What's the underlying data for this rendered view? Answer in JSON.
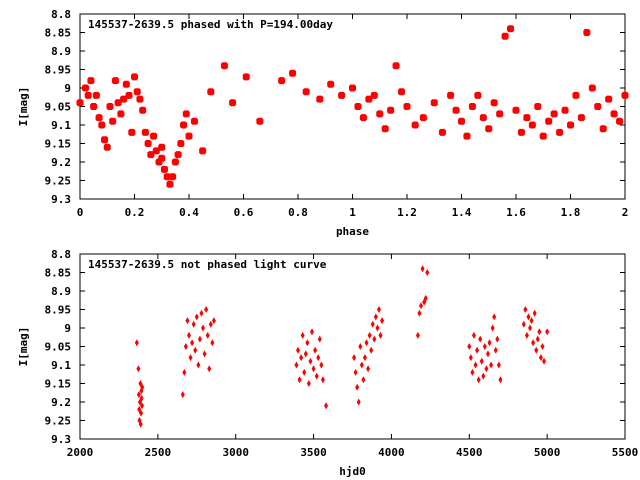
{
  "chart_data": [
    {
      "type": "scatter",
      "title": "145537-2639.5 phased with P=194.00day",
      "xlabel": "phase",
      "ylabel": "I[mag]",
      "xlim": [
        0,
        2
      ],
      "ylim": [
        9.3,
        8.8
      ],
      "y_inverted": true,
      "xticks": [
        "0",
        "0.2",
        "0.4",
        "0.6",
        "0.8",
        "1",
        "1.2",
        "1.4",
        "1.6",
        "1.8",
        "2"
      ],
      "yticks": [
        "8.8",
        "8.85",
        "8.9",
        "8.95",
        "9",
        "9.05",
        "9.1",
        "9.15",
        "9.2",
        "9.25",
        "9.3"
      ],
      "marker": "filled-square",
      "color": "#ff0000",
      "series": [
        {
          "x": [
            0.0,
            0.02,
            0.03,
            0.04,
            0.05,
            0.06,
            0.07,
            0.08,
            0.09,
            0.1,
            0.11,
            0.12,
            0.13,
            0.14,
            0.15,
            0.16,
            0.17,
            0.18,
            0.19,
            0.2,
            0.21,
            0.22,
            0.23,
            0.24,
            0.25,
            0.26,
            0.27,
            0.28,
            0.29,
            0.3,
            0.3,
            0.31,
            0.32,
            0.33,
            0.34,
            0.35,
            0.36,
            0.37,
            0.38,
            0.39,
            0.4,
            0.42,
            0.45,
            0.48,
            0.53,
            0.56,
            0.61,
            0.66,
            0.74,
            0.78,
            0.83,
            0.88,
            0.92,
            0.96,
            1.0,
            1.02,
            1.04,
            1.06,
            1.08,
            1.1,
            1.12,
            1.14,
            1.16,
            1.18,
            1.2,
            1.23,
            1.26,
            1.3,
            1.33,
            1.36,
            1.38,
            1.4,
            1.42,
            1.44,
            1.46,
            1.48,
            1.5,
            1.52,
            1.54,
            1.56,
            1.58,
            1.6,
            1.62,
            1.64,
            1.66,
            1.68,
            1.7,
            1.72,
            1.74,
            1.76,
            1.78,
            1.8,
            1.82,
            1.84,
            1.86,
            1.88,
            1.9,
            1.92,
            1.94,
            1.96,
            1.98,
            2.0
          ],
          "y": [
            9.04,
            9.0,
            9.02,
            8.98,
            9.05,
            9.02,
            9.08,
            9.1,
            9.14,
            9.16,
            9.05,
            9.09,
            8.98,
            9.04,
            9.07,
            9.03,
            8.99,
            9.02,
            9.12,
            8.97,
            9.01,
            9.03,
            9.06,
            9.12,
            9.15,
            9.18,
            9.13,
            9.17,
            9.2,
            9.19,
            9.16,
            9.22,
            9.24,
            9.26,
            9.24,
            9.2,
            9.18,
            9.15,
            9.1,
            9.07,
            9.13,
            9.09,
            9.17,
            9.01,
            8.94,
            9.04,
            8.97,
            9.09,
            8.98,
            8.96,
            9.01,
            9.03,
            8.99,
            9.02,
            9.0,
            9.05,
            9.08,
            9.03,
            9.02,
            9.07,
            9.11,
            9.06,
            8.94,
            9.01,
            9.05,
            9.1,
            9.08,
            9.04,
            9.12,
            9.02,
            9.06,
            9.09,
            9.13,
            9.05,
            9.02,
            9.08,
            9.11,
            9.04,
            9.07,
            8.86,
            8.84,
            9.06,
            9.12,
            9.08,
            9.1,
            9.05,
            9.13,
            9.09,
            9.07,
            9.12,
            9.06,
            9.1,
            9.02,
            9.08,
            8.85,
            9.0,
            9.05,
            9.11,
            9.03,
            9.07,
            9.09,
            9.02
          ]
        }
      ]
    },
    {
      "type": "scatter",
      "title": "145537-2639.5 not phased light curve",
      "xlabel": "hjd0",
      "ylabel": "I[mag]",
      "xlim": [
        2000,
        5500
      ],
      "ylim": [
        9.3,
        8.8
      ],
      "y_inverted": true,
      "xticks": [
        "2000",
        "2500",
        "3000",
        "3500",
        "4000",
        "4500",
        "5000",
        "5500"
      ],
      "yticks": [
        "8.8",
        "8.85",
        "8.9",
        "8.95",
        "9",
        "9.05",
        "9.1",
        "9.15",
        "9.2",
        "9.25",
        "9.3"
      ],
      "marker": "diamond",
      "color": "#ff0000",
      "series": [
        {
          "x": [
            2365,
            2375,
            2378,
            2380,
            2382,
            2385,
            2388,
            2390,
            2392,
            2394,
            2396,
            2398,
            2400,
            2660,
            2670,
            2680,
            2690,
            2700,
            2710,
            2720,
            2730,
            2740,
            2750,
            2760,
            2770,
            2780,
            2790,
            2800,
            2810,
            2820,
            2830,
            2840,
            2850,
            2860,
            3390,
            3400,
            3410,
            3420,
            3430,
            3440,
            3450,
            3460,
            3470,
            3480,
            3490,
            3500,
            3510,
            3520,
            3530,
            3540,
            3550,
            3560,
            3580,
            3760,
            3770,
            3780,
            3790,
            3800,
            3810,
            3820,
            3830,
            3840,
            3850,
            3860,
            3870,
            3880,
            3890,
            3900,
            3910,
            3920,
            3930,
            3940,
            4170,
            4180,
            4190,
            4200,
            4210,
            4220,
            4230,
            4500,
            4510,
            4520,
            4530,
            4540,
            4550,
            4560,
            4570,
            4580,
            4590,
            4600,
            4610,
            4620,
            4630,
            4640,
            4650,
            4660,
            4670,
            4680,
            4690,
            4700,
            4850,
            4860,
            4870,
            4880,
            4890,
            4900,
            4910,
            4920,
            4930,
            4940,
            4950,
            4960,
            4970,
            4980,
            5000
          ],
          "y": [
            9.04,
            9.11,
            9.18,
            9.22,
            9.25,
            9.2,
            9.15,
            9.26,
            9.23,
            9.17,
            9.19,
            9.21,
            9.16,
            9.18,
            9.12,
            9.05,
            8.98,
            9.02,
            9.08,
            9.04,
            8.99,
            9.06,
            8.97,
            9.1,
            9.03,
            8.96,
            9.0,
            9.07,
            8.95,
            9.02,
            9.11,
            8.99,
            9.04,
            8.98,
            9.1,
            9.06,
            9.14,
            9.08,
            9.02,
            9.12,
            9.07,
            9.04,
            9.15,
            9.09,
            9.01,
            9.11,
            9.06,
            9.13,
            9.08,
            9.03,
            9.1,
            9.14,
            9.21,
            9.08,
            9.12,
            9.16,
            9.2,
            9.05,
            9.1,
            9.14,
            9.08,
            9.04,
            9.11,
            9.02,
            9.06,
            8.99,
            9.03,
            8.97,
            9.0,
            8.95,
            9.02,
            8.98,
            9.02,
            8.96,
            8.94,
            8.84,
            8.93,
            8.92,
            8.85,
            9.05,
            9.08,
            9.12,
            9.02,
            9.1,
            9.06,
            9.14,
            9.03,
            9.09,
            9.13,
            9.05,
            9.11,
            9.07,
            9.04,
            9.1,
            9.0,
            8.97,
            9.06,
            9.03,
            9.1,
            9.14,
            8.99,
            8.95,
            9.02,
            8.97,
            9.0,
            8.98,
            9.04,
            8.96,
            9.06,
            9.03,
            9.01,
            9.08,
            9.05,
            9.09,
            9.01
          ]
        }
      ]
    }
  ]
}
